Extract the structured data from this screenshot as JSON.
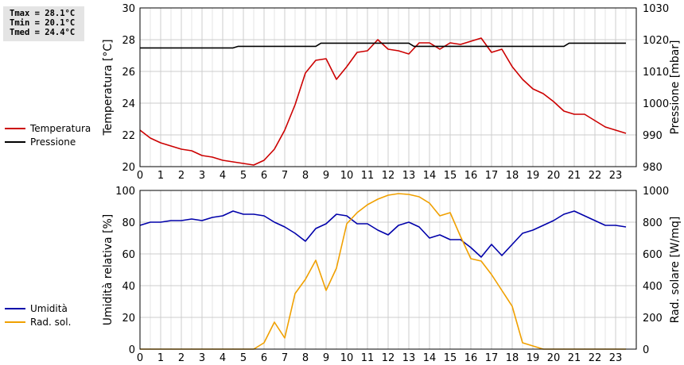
{
  "stats": {
    "tmax": "Tmax = 28.1°C",
    "tmin": "Tmin = 20.1°C",
    "tmed": "Tmed = 24.4°C"
  },
  "chart_data": [
    {
      "type": "line",
      "xlabel": "",
      "xlim": [
        0,
        24
      ],
      "xticks": [
        "0",
        "1",
        "2",
        "3",
        "4",
        "5",
        "6",
        "7",
        "8",
        "9",
        "10",
        "11",
        "12",
        "13",
        "14",
        "15",
        "16",
        "17",
        "18",
        "19",
        "20",
        "21",
        "22",
        "23"
      ],
      "ylabel": "Temperatura [°C]",
      "ylim": [
        20,
        30
      ],
      "yticks": [
        "20",
        "22",
        "24",
        "26",
        "28",
        "30"
      ],
      "y2label": "Pressione [mbar]",
      "y2lim": [
        980,
        1030
      ],
      "y2ticks": [
        "980",
        "990",
        "1000",
        "1010",
        "1020",
        "1030"
      ],
      "grid": true,
      "legend_position": "left",
      "series": [
        {
          "name": "Temperatura",
          "axis": "left",
          "color": "#cc0000",
          "x": [
            0,
            0.5,
            1,
            1.5,
            2,
            2.5,
            3,
            3.5,
            4,
            4.5,
            5,
            5.5,
            6,
            6.5,
            7,
            7.5,
            8,
            8.5,
            9,
            9.5,
            10,
            10.5,
            11,
            11.5,
            12,
            12.5,
            13,
            13.5,
            14,
            14.5,
            15,
            15.5,
            16,
            16.5,
            17,
            17.5,
            18,
            18.5,
            19,
            19.5,
            20,
            20.5,
            21,
            21.5,
            22,
            22.5,
            23,
            23.5
          ],
          "values": [
            22.3,
            21.8,
            21.5,
            21.3,
            21.1,
            21.0,
            20.7,
            20.6,
            20.4,
            20.3,
            20.2,
            20.1,
            20.4,
            21.1,
            22.3,
            23.9,
            25.9,
            26.7,
            26.8,
            25.5,
            26.3,
            27.2,
            27.3,
            28.0,
            27.4,
            27.3,
            27.1,
            27.8,
            27.8,
            27.4,
            27.8,
            27.7,
            27.9,
            28.1,
            27.2,
            27.4,
            26.3,
            25.5,
            24.9,
            24.6,
            24.1,
            23.5,
            23.3,
            23.3,
            22.9,
            22.5,
            22.3,
            22.1
          ]
        },
        {
          "name": "Pressione",
          "axis": "right",
          "color": "#000000",
          "x": [
            0,
            4.5,
            4.75,
            8.5,
            8.75,
            13,
            13.25,
            20.5,
            20.75,
            23.5
          ],
          "values": [
            1017.4,
            1017.4,
            1017.9,
            1017.9,
            1018.9,
            1018.9,
            1017.9,
            1017.9,
            1018.9,
            1018.9
          ]
        }
      ]
    },
    {
      "type": "line",
      "xlabel": "",
      "xlim": [
        0,
        24
      ],
      "xticks": [
        "0",
        "1",
        "2",
        "3",
        "4",
        "5",
        "6",
        "7",
        "8",
        "9",
        "10",
        "11",
        "12",
        "13",
        "14",
        "15",
        "16",
        "17",
        "18",
        "19",
        "20",
        "21",
        "22",
        "23"
      ],
      "ylabel": "Umidità relativa [%]",
      "ylim": [
        0,
        100
      ],
      "yticks": [
        "0",
        "20",
        "40",
        "60",
        "80",
        "100"
      ],
      "y2label": "Rad. solare [W/mq]",
      "y2lim": [
        0,
        1000
      ],
      "y2ticks": [
        "0",
        "200",
        "400",
        "600",
        "800",
        "1000"
      ],
      "grid": true,
      "legend_position": "left",
      "series": [
        {
          "name": "Umidità",
          "axis": "left",
          "color": "#0000aa",
          "x": [
            0,
            0.5,
            1,
            1.5,
            2,
            2.5,
            3,
            3.5,
            4,
            4.5,
            5,
            5.5,
            6,
            6.5,
            7,
            7.5,
            8,
            8.5,
            9,
            9.5,
            10,
            10.5,
            11,
            11.5,
            12,
            12.5,
            13,
            13.5,
            14,
            14.5,
            15,
            15.5,
            16,
            16.5,
            17,
            17.5,
            18,
            18.5,
            19,
            19.5,
            20,
            20.5,
            21,
            21.5,
            22,
            22.5,
            23,
            23.5
          ],
          "values": [
            78,
            80,
            80,
            81,
            81,
            82,
            81,
            83,
            84,
            87,
            85,
            85,
            84,
            80,
            77,
            73,
            68,
            76,
            79,
            85,
            84,
            79,
            79,
            75,
            72,
            78,
            80,
            77,
            70,
            72,
            69,
            69,
            64,
            58,
            66,
            59,
            66,
            73,
            75,
            78,
            81,
            85,
            87,
            84,
            81,
            78,
            78,
            77
          ]
        },
        {
          "name": "Rad. sol.",
          "axis": "right",
          "color": "#f0a000",
          "x": [
            0,
            0.5,
            1,
            1.5,
            2,
            2.5,
            3,
            3.5,
            4,
            4.5,
            5,
            5.5,
            6,
            6.5,
            7,
            7.5,
            8,
            8.5,
            9,
            9.5,
            10,
            10.5,
            11,
            11.5,
            12,
            12.5,
            13,
            13.5,
            14,
            14.5,
            15,
            15.5,
            16,
            16.5,
            17,
            17.5,
            18,
            18.5,
            19,
            19.5,
            20,
            20.5,
            21,
            21.5,
            22,
            22.5,
            23,
            23.5
          ],
          "values": [
            0,
            0,
            0,
            0,
            0,
            0,
            0,
            0,
            0,
            0,
            0,
            0,
            40,
            170,
            70,
            350,
            440,
            560,
            370,
            510,
            790,
            860,
            910,
            945,
            970,
            980,
            975,
            960,
            920,
            840,
            860,
            710,
            570,
            555,
            470,
            370,
            270,
            40,
            20,
            0,
            0,
            0,
            0,
            0,
            0,
            0,
            0,
            0
          ]
        }
      ]
    }
  ]
}
